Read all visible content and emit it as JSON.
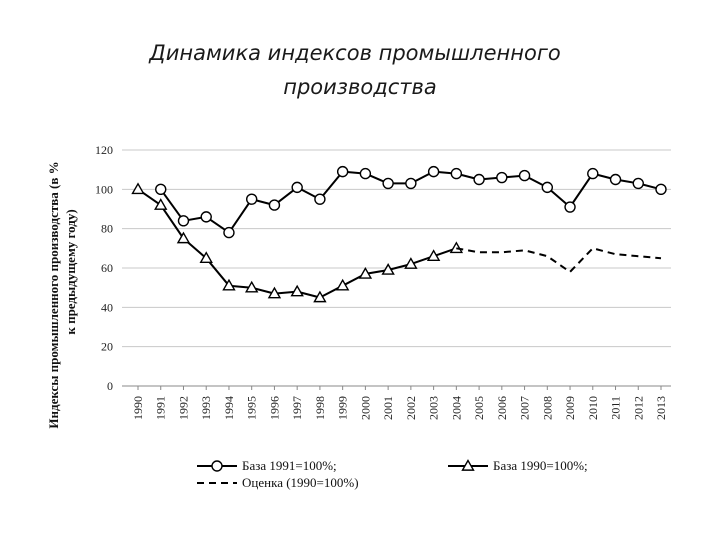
{
  "title": {
    "line1": "Динамика индексов промышленного",
    "line2": "производства"
  },
  "chart_data": {
    "type": "line",
    "ylabel": "Индексы промышленного производства (в % к предыдущему году)",
    "ylabel_line1": "Индексы промышленного производства (в %",
    "ylabel_line2": "к предыдущему году)",
    "ylim": [
      0,
      120
    ],
    "yticks": [
      0,
      20,
      40,
      60,
      80,
      100,
      120
    ],
    "grid": true,
    "legend_position": "bottom",
    "x": [
      "1990",
      "1991",
      "1992",
      "1993",
      "1994",
      "1995",
      "1996",
      "1997",
      "1998",
      "1999",
      "2000",
      "2001",
      "2002",
      "2003",
      "2004",
      "2005",
      "2006",
      "2007",
      "2008",
      "2009",
      "2010",
      "2011",
      "2012",
      "2013"
    ],
    "series": [
      {
        "name": "База 1991=100%;",
        "marker": "circle",
        "line": "solid",
        "x": [
          "1991",
          "1992",
          "1993",
          "1994",
          "1995",
          "1996",
          "1997",
          "1998",
          "1999",
          "2000",
          "2001",
          "2002",
          "2003",
          "2004",
          "2005",
          "2006",
          "2007",
          "2008",
          "2009",
          "2010",
          "2011",
          "2012",
          "2013"
        ],
        "values": [
          100,
          84,
          86,
          78,
          95,
          92,
          101,
          95,
          109,
          108,
          103,
          103,
          109,
          108,
          105,
          106,
          107,
          101,
          91,
          108,
          105,
          103,
          100
        ]
      },
      {
        "name": "База 1990=100%;",
        "marker": "triangle",
        "line": "solid",
        "x": [
          "1990",
          "1991",
          "1992",
          "1993",
          "1994",
          "1995",
          "1996",
          "1997",
          "1998",
          "1999",
          "2000",
          "2001",
          "2002",
          "2003",
          "2004"
        ],
        "values": [
          100,
          92,
          75,
          65,
          51,
          50,
          47,
          48,
          45,
          51,
          57,
          59,
          62,
          66,
          70
        ]
      },
      {
        "name": "Оценка (1990=100%)",
        "marker": "none",
        "line": "dashed",
        "x": [
          "2004",
          "2005",
          "2006",
          "2007",
          "2008",
          "2009",
          "2010",
          "2011",
          "2012",
          "2013"
        ],
        "values": [
          70,
          68,
          68,
          69,
          66,
          58,
          70,
          67,
          66,
          65
        ]
      }
    ]
  }
}
